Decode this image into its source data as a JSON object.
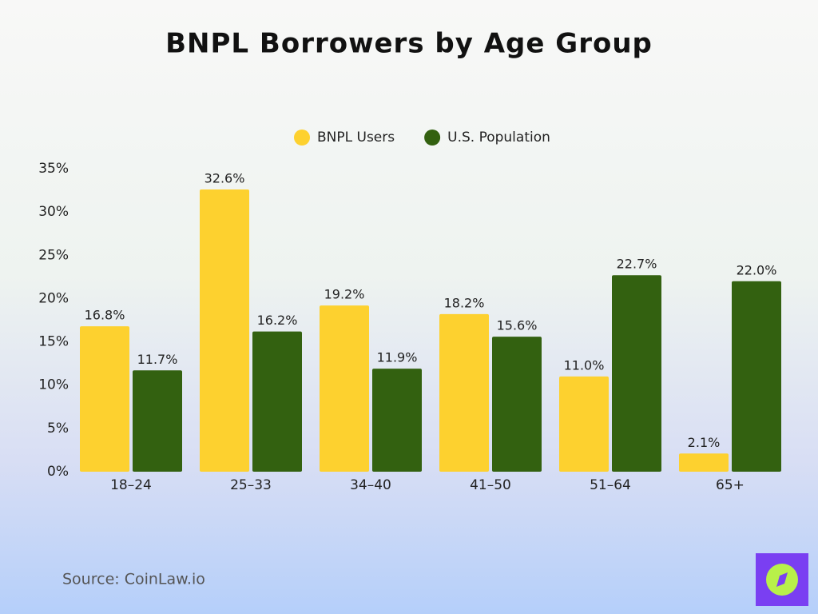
{
  "chart_data": {
    "type": "bar",
    "title": "BNPL Borrowers by Age Group",
    "categories": [
      "18–24",
      "25–33",
      "34–40",
      "41–50",
      "51–64",
      "65+"
    ],
    "series": [
      {
        "name": "BNPL Users",
        "color": "#fdd12f",
        "values": [
          16.8,
          32.6,
          19.2,
          18.2,
          11.0,
          2.1
        ],
        "value_labels": [
          "16.8%",
          "32.6%",
          "19.2%",
          "18.2%",
          "11.0%",
          "2.1%"
        ]
      },
      {
        "name": "U.S. Population",
        "color": "#336110",
        "values": [
          11.7,
          16.2,
          11.9,
          15.6,
          22.7,
          22.0
        ],
        "value_labels": [
          "11.7%",
          "16.2%",
          "11.9%",
          "15.6%",
          "22.7%",
          "22.0%"
        ]
      }
    ],
    "ylim": [
      0,
      35
    ],
    "yticks": [
      {
        "value": 0,
        "label": "0%"
      },
      {
        "value": 5,
        "label": "5%"
      },
      {
        "value": 10,
        "label": "10%"
      },
      {
        "value": 15,
        "label": "15%"
      },
      {
        "value": 20,
        "label": "20%"
      },
      {
        "value": 25,
        "label": "25%"
      },
      {
        "value": 30,
        "label": "30%"
      },
      {
        "value": 35,
        "label": "35%"
      }
    ],
    "grid": false,
    "legend": "top",
    "source": "Source: CoinLaw.io"
  }
}
